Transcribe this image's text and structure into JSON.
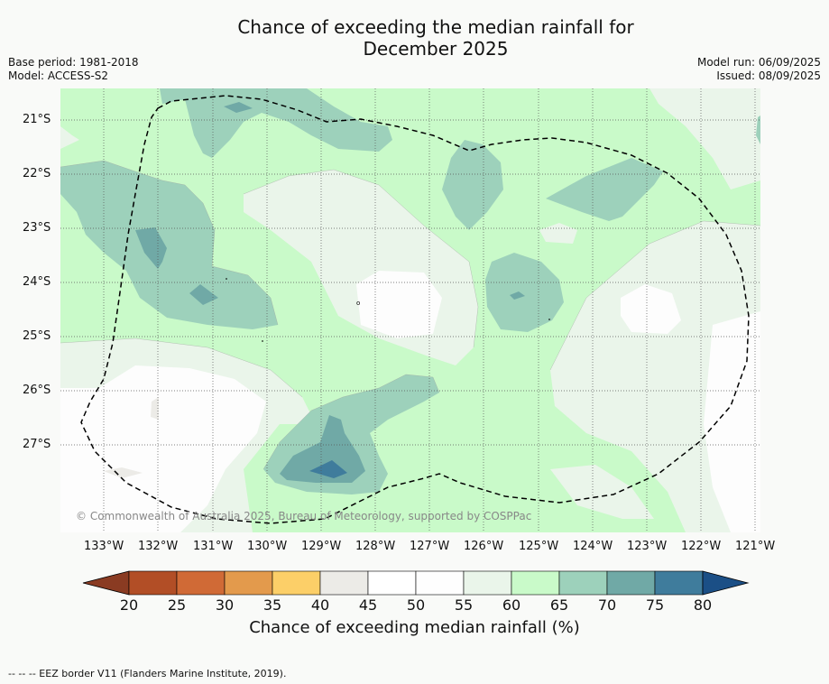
{
  "title_line1": "Chance of exceeding the median rainfall for",
  "title_line2": "December 2025",
  "base_period": "Base period: 1981-2018",
  "model": "Model: ACCESS-S2",
  "model_run": "Model run: 06/09/2025",
  "issued": "Issued: 08/09/2025",
  "copyright": "© Commonwealth of Australia 2025, Bureau of Meteorology, supported by COSPPac",
  "lat_labels": [
    "21°S",
    "22°S",
    "23°S",
    "24°S",
    "25°S",
    "26°S",
    "27°S"
  ],
  "lon_labels": [
    "133°W",
    "132°W",
    "131°W",
    "130°W",
    "129°W",
    "128°W",
    "127°W",
    "126°W",
    "125°W",
    "124°W",
    "123°W",
    "122°W",
    "121°W"
  ],
  "colorbar": {
    "ticks": [
      "20",
      "25",
      "30",
      "35",
      "40",
      "45",
      "50",
      "55",
      "60",
      "65",
      "70",
      "75",
      "80"
    ],
    "colors": [
      "#8a3b22",
      "#b24e26",
      "#d06a36",
      "#e39a4c",
      "#fccf68",
      "#ecebe7",
      "#ffffff",
      "#fefefe",
      "#eaf5ea",
      "#c9fac9",
      "#9dd1bb",
      "#70a9a6",
      "#3f7c9c",
      "#1b4f86"
    ],
    "label": "Chance of exceeding median rainfall (%)"
  },
  "footer": "-- -- -- EEZ border V11 (Flanders Marine Institute, 2019)."
}
